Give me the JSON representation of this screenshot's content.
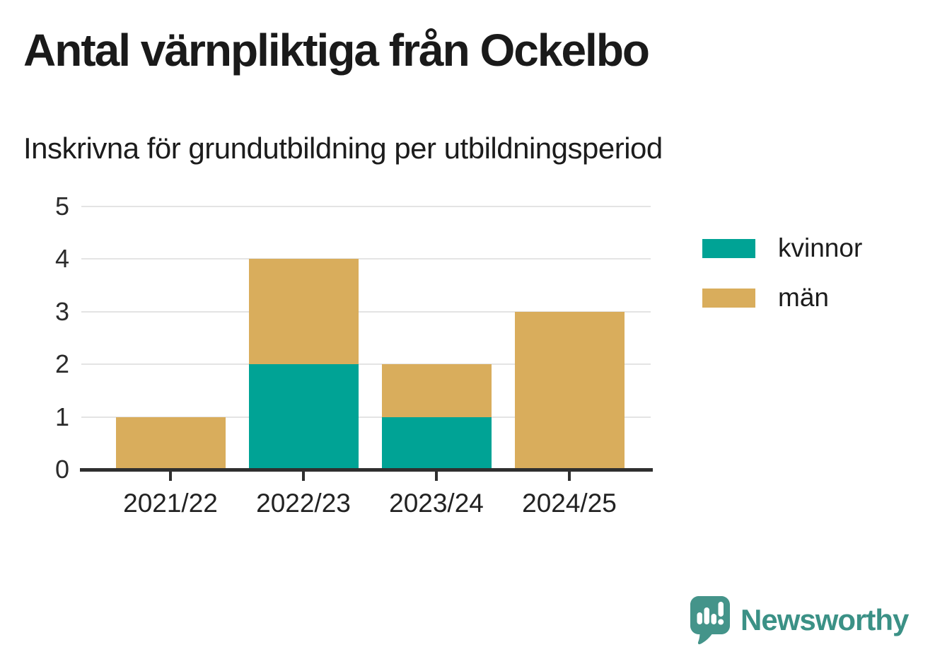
{
  "header": {
    "title": "Antal värnpliktiga från Ockelbo",
    "subtitle": "Inskrivna för grundutbildning per utbildningsperiod"
  },
  "chart_data": {
    "type": "bar",
    "stacked": true,
    "title": "Antal värnpliktiga från Ockelbo",
    "subtitle": "Inskrivna för grundutbildning per utbildningsperiod",
    "categories": [
      "2021/22",
      "2022/23",
      "2023/24",
      "2024/25"
    ],
    "series": [
      {
        "name": "kvinnor",
        "color": "#00A395",
        "values": [
          0,
          2,
          1,
          0
        ]
      },
      {
        "name": "män",
        "color": "#D9AD5C",
        "values": [
          1,
          2,
          1,
          3
        ]
      }
    ],
    "totals": [
      1,
      4,
      2,
      3
    ],
    "xlabel": "",
    "ylabel": "",
    "ylim": [
      0,
      5
    ],
    "yticks": [
      0,
      1,
      2,
      3,
      4,
      5
    ],
    "grid": "horizontal",
    "legend_position": "right"
  },
  "legend": {
    "items": [
      {
        "label": "kvinnor",
        "color": "#00A395"
      },
      {
        "label": "män",
        "color": "#D9AD5C"
      }
    ]
  },
  "branding": {
    "name": "Newsworthy",
    "text_color": "#3b9186",
    "icon": "newsworthy-logo-icon",
    "icon_color": "#44948A"
  },
  "colors": {
    "gridline": "#e4e4e4",
    "axis": "#2f2f2f",
    "background": "#ffffff"
  }
}
